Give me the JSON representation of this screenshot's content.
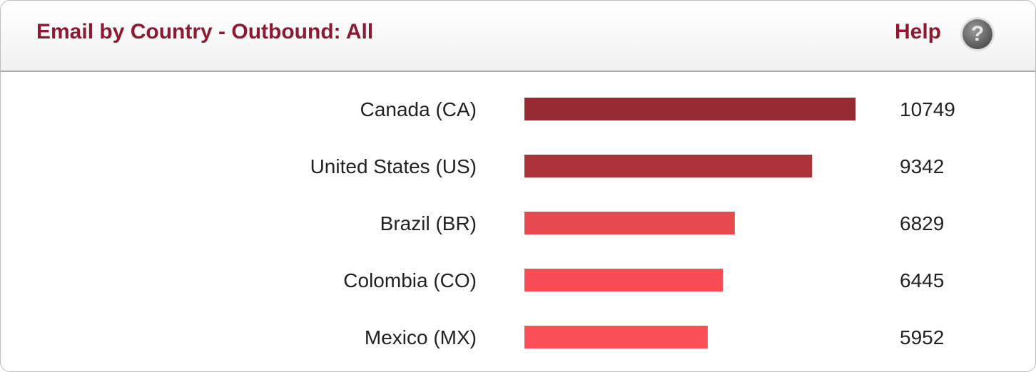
{
  "header": {
    "title": "Email by Country - Outbound: All",
    "help_label": "Help",
    "help_icon": "question-mark-icon"
  },
  "chart_data": {
    "type": "bar",
    "orientation": "horizontal",
    "categories": [
      "Canada (CA)",
      "United States (US)",
      "Brazil (BR)",
      "Colombia (CO)",
      "Mexico (MX)"
    ],
    "values": [
      10749,
      9342,
      6829,
      6445,
      5952
    ],
    "colors": [
      "#962a32",
      "#ad333a",
      "#e84850",
      "#f94b55",
      "#fb4f58"
    ],
    "data_labels": true,
    "grid": false
  }
}
